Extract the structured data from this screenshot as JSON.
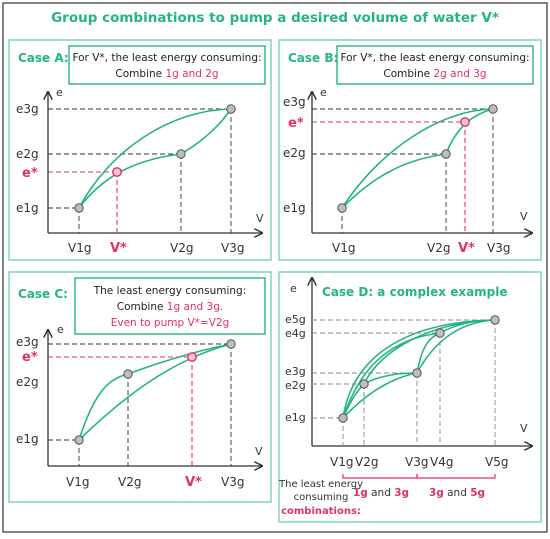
{
  "title": "Group combinations to pump a desired volume of water V*",
  "colors": {
    "accent": "#26b38a",
    "highlight": "#e0306e",
    "border": "#333333",
    "panel_border": "#7fd6bd",
    "dash": "#333333",
    "node_fill": "#bdbdbd"
  },
  "caseA": {
    "label": "Case A:",
    "note_line1": "For V*, the least energy consuming:",
    "note_prefix": "Combine ",
    "note_highlight": "1g and 2g",
    "axis_e": "e",
    "axis_v": "V",
    "e3": "e3g",
    "e2": "e2g",
    "estar": "e*",
    "e1": "e1g",
    "v1": "V1g",
    "vstar": "V*",
    "v2": "V2g",
    "v3": "V3g"
  },
  "caseB": {
    "label": "Case B:",
    "note_line1": "For V*, the least energy consuming:",
    "note_prefix": "Combine ",
    "note_highlight": "2g and 3g",
    "axis_e": "e",
    "axis_v": "V",
    "e3": "e3g",
    "estar": "e*",
    "e2": "e2g",
    "e1": "e1g",
    "v1": "V1g",
    "v2": "V2g",
    "vstar": "V*",
    "v3": "V3g"
  },
  "caseC": {
    "label": "Case C:",
    "note_line1": "The least energy consuming:",
    "note_line2_prefix": "Combine ",
    "note_line2_highlight": "1g and 3g.",
    "note_line3": "Even to pump V*=V2g",
    "axis_e": "e",
    "axis_v": "V",
    "e3": "e3g",
    "estar": "e*",
    "e2": "e2g",
    "e1": "e1g",
    "v1": "V1g",
    "v2": "V2g",
    "vstar": "V*",
    "v3": "V3g"
  },
  "caseD": {
    "label": "Case D: a complex example",
    "axis_e": "e",
    "axis_v": "V",
    "e5": "e5g",
    "e4": "e4g",
    "e3": "e3g",
    "e2": "e2g",
    "e1": "e1g",
    "v1": "V1g",
    "v2": "V2g",
    "v3": "V3g",
    "v4": "V4g",
    "v5": "V5g",
    "legend_line1": "The least energy",
    "legend_line2": "consuming",
    "legend_line3": "combinations:",
    "combo1_a": "1g",
    "combo1_and": " and ",
    "combo1_b": "3g",
    "combo2_a": "3g",
    "combo2_and": " and ",
    "combo2_b": "5g"
  }
}
